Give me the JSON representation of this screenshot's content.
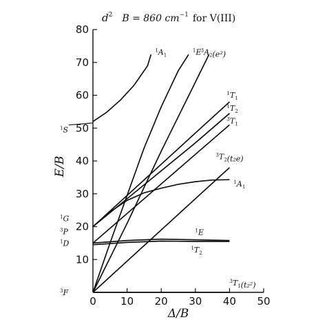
{
  "chart_data": {
    "type": "line",
    "title_main": "d",
    "title_super": "2",
    "title_rest": "B = 860 cm",
    "title_unit_exp": "−1",
    "title_tail": "for V(III)",
    "xlabel": "Δ/B",
    "ylabel": "E/B",
    "xlim": [
      0,
      50
    ],
    "ylim": [
      0,
      80
    ],
    "x_ticks": [
      0,
      10,
      20,
      30,
      40,
      50
    ],
    "y_ticks": [
      10,
      20,
      30,
      40,
      50,
      60,
      70,
      80
    ],
    "left_terms": [
      {
        "mult": "1",
        "letter": "S",
        "y": 52
      },
      {
        "mult": "1",
        "letter": "G",
        "y": 22.5
      },
      {
        "mult": "3",
        "letter": "P",
        "y": 18.5
      },
      {
        "mult": "1",
        "letter": "D",
        "y": 15
      },
      {
        "mult": "3",
        "letter": "F",
        "y": 0
      }
    ],
    "series": [
      {
        "mult": "1",
        "sym": "A",
        "sub": "1",
        "extra": "",
        "points": [
          [
            0,
            52
          ],
          [
            4,
            54.8
          ],
          [
            8,
            58.5
          ],
          [
            12,
            63
          ],
          [
            16,
            69
          ],
          [
            17,
            72.4
          ]
        ]
      },
      {
        "mult": "1",
        "sym": "E",
        "sub": "",
        "extra": "",
        "points": [
          [
            0,
            0
          ],
          [
            5,
            15
          ],
          [
            10,
            29.5
          ],
          [
            15,
            44
          ],
          [
            20,
            56.5
          ],
          [
            25,
            67.5
          ],
          [
            28,
            72.4
          ]
        ]
      },
      {
        "mult": "3",
        "sym": "A",
        "sub": "2",
        "extra": "(e²)",
        "points": [
          [
            0,
            0
          ],
          [
            10,
            21
          ],
          [
            20,
            43
          ],
          [
            30,
            64
          ],
          [
            34,
            72.4
          ]
        ]
      },
      {
        "mult": "1",
        "sym": "T",
        "sub": "1",
        "extra": "",
        "points": [
          [
            0,
            20
          ],
          [
            10,
            29.5
          ],
          [
            20,
            39
          ],
          [
            30,
            48.5
          ],
          [
            40,
            58
          ]
        ]
      },
      {
        "mult": "1",
        "sym": "T",
        "sub": "2",
        "extra": "",
        "points": [
          [
            0,
            20
          ],
          [
            10,
            28.5
          ],
          [
            20,
            37
          ],
          [
            30,
            45.5
          ],
          [
            40,
            54.5
          ]
        ]
      },
      {
        "mult": "3",
        "sym": "T",
        "sub": "1",
        "extra": "",
        "points": [
          [
            0,
            15
          ],
          [
            10,
            24
          ],
          [
            20,
            33
          ],
          [
            30,
            42
          ],
          [
            40,
            51
          ]
        ]
      },
      {
        "mult": "3",
        "sym": "T",
        "sub": "2",
        "extra": "(t₂e)",
        "points": [
          [
            0,
            0
          ],
          [
            10,
            9.5
          ],
          [
            20,
            19
          ],
          [
            30,
            28.5
          ],
          [
            40,
            38
          ]
        ]
      },
      {
        "mult": "1",
        "sym": "A",
        "sub": "1",
        "extra": "",
        "points": [
          [
            0,
            20
          ],
          [
            5,
            24.5
          ],
          [
            10,
            28
          ],
          [
            15,
            30.3
          ],
          [
            20,
            31.7
          ],
          [
            25,
            32.9
          ],
          [
            30,
            33.7
          ],
          [
            35,
            34.2
          ],
          [
            40,
            34.3
          ]
        ]
      },
      {
        "mult": "1",
        "sym": "E",
        "sub": "",
        "extra": "",
        "points": [
          [
            0,
            15
          ],
          [
            10,
            15.8
          ],
          [
            20,
            16.2
          ],
          [
            30,
            16
          ],
          [
            40,
            15.8
          ]
        ]
      },
      {
        "mult": "1",
        "sym": "T",
        "sub": "2",
        "extra": "",
        "points": [
          [
            0,
            14.5
          ],
          [
            10,
            15.2
          ],
          [
            20,
            15.6
          ],
          [
            30,
            15.5
          ],
          [
            40,
            15.5
          ]
        ]
      },
      {
        "mult": "3",
        "sym": "T",
        "sub": "1",
        "extra": "(t₂²)",
        "points": [
          [
            0,
            0
          ],
          [
            40,
            0
          ]
        ]
      }
    ],
    "grid": false,
    "legend": "inline labels at curve ends"
  }
}
